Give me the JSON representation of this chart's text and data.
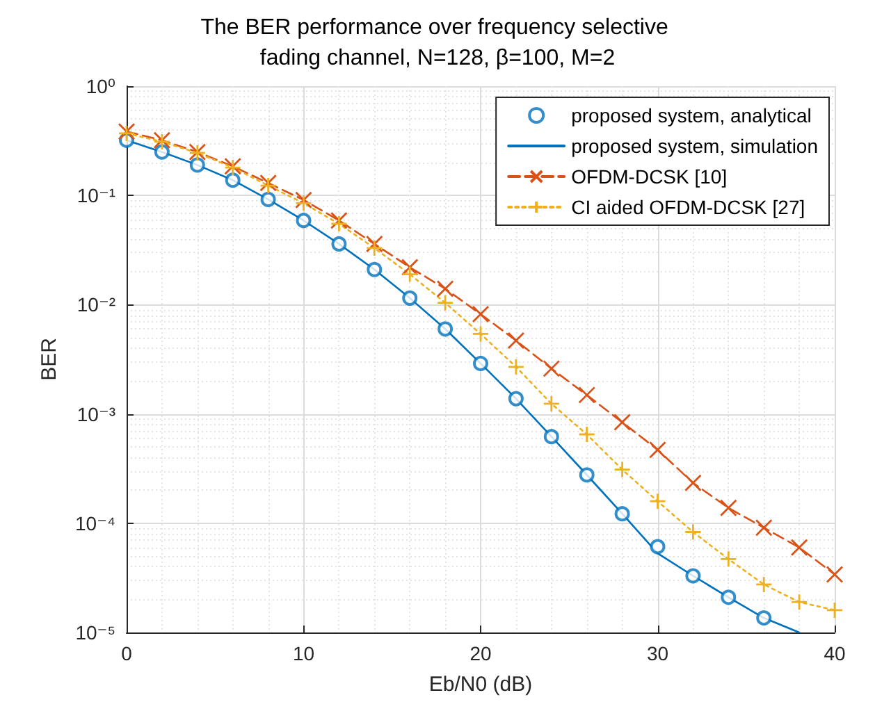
{
  "chart_data": {
    "type": "line",
    "title": "The BER performance over frequency selective fading channel, N=128, β=100, M=2",
    "xlabel": "Eb/N0 (dB)",
    "ylabel": "BER",
    "x": [
      0,
      2,
      4,
      6,
      8,
      10,
      12,
      14,
      16,
      18,
      20,
      22,
      24,
      26,
      28,
      30,
      32,
      34,
      36,
      38,
      40
    ],
    "series": [
      {
        "name": "proposed system, analytical",
        "type": "scatter",
        "marker": "circle",
        "color": "#0072bd",
        "x": [
          0,
          2,
          4,
          6,
          8,
          10,
          12,
          14,
          16,
          18,
          20,
          22,
          24,
          26,
          28,
          30,
          32,
          34,
          36
        ],
        "values": [
          0.32,
          0.25,
          0.19,
          0.138,
          0.092,
          0.059,
          0.036,
          0.021,
          0.0115,
          0.006,
          0.0029,
          0.00138,
          0.00062,
          0.000277,
          0.000122,
          6.1e-05,
          3.3e-05,
          2.1e-05,
          1.36e-05
        ]
      },
      {
        "name": "proposed system, simulation",
        "marker": "none",
        "line_style": "solid",
        "color": "#0072bd",
        "x": [
          0,
          2,
          4,
          6,
          8,
          10,
          12,
          14,
          16,
          18,
          20,
          22,
          24,
          26,
          28,
          30,
          32,
          34,
          36,
          38
        ],
        "values": [
          0.32,
          0.25,
          0.19,
          0.138,
          0.092,
          0.059,
          0.036,
          0.021,
          0.0115,
          0.006,
          0.0029,
          0.00138,
          0.00062,
          0.000277,
          0.000122,
          5.3e-05,
          3.3e-05,
          2.1e-05,
          1.36e-05,
          1e-05
        ]
      },
      {
        "name": "OFDM-DCSK [10]",
        "marker": "cross",
        "line_style": "dashed",
        "color": "#d95319",
        "values": [
          0.385,
          0.32,
          0.25,
          0.185,
          0.13,
          0.091,
          0.059,
          0.036,
          0.022,
          0.014,
          0.0082,
          0.0047,
          0.0026,
          0.00149,
          0.00084,
          0.00047,
          0.000234,
          0.000138,
          9.1e-05,
          6e-05,
          3.4e-05
        ]
      },
      {
        "name": "CI aided OFDM-DCSK [27]",
        "marker": "plus",
        "line_style": "dotted",
        "color": "#edb120",
        "values": [
          0.37,
          0.31,
          0.245,
          0.18,
          0.123,
          0.085,
          0.055,
          0.033,
          0.019,
          0.0104,
          0.0054,
          0.0027,
          0.00124,
          0.00065,
          0.00031,
          0.000159,
          8.3e-05,
          4.7e-05,
          2.75e-05,
          1.9e-05,
          1.6e-05
        ]
      }
    ],
    "xlim": [
      0,
      40
    ],
    "xticks": [
      0,
      10,
      20,
      30,
      40
    ],
    "ylim": [
      1e-05,
      1
    ],
    "log": "y",
    "yticks": [
      {
        "value": 1e-05,
        "label": "10⁻⁵"
      },
      {
        "value": 0.0001,
        "label": "10⁻⁴"
      },
      {
        "value": 0.001,
        "label": "10⁻³"
      },
      {
        "value": 0.01,
        "label": "10⁻²"
      },
      {
        "value": 0.1,
        "label": "10⁻¹"
      },
      {
        "value": 1,
        "label": "10⁰"
      }
    ],
    "grid": true,
    "legend": "top right"
  }
}
